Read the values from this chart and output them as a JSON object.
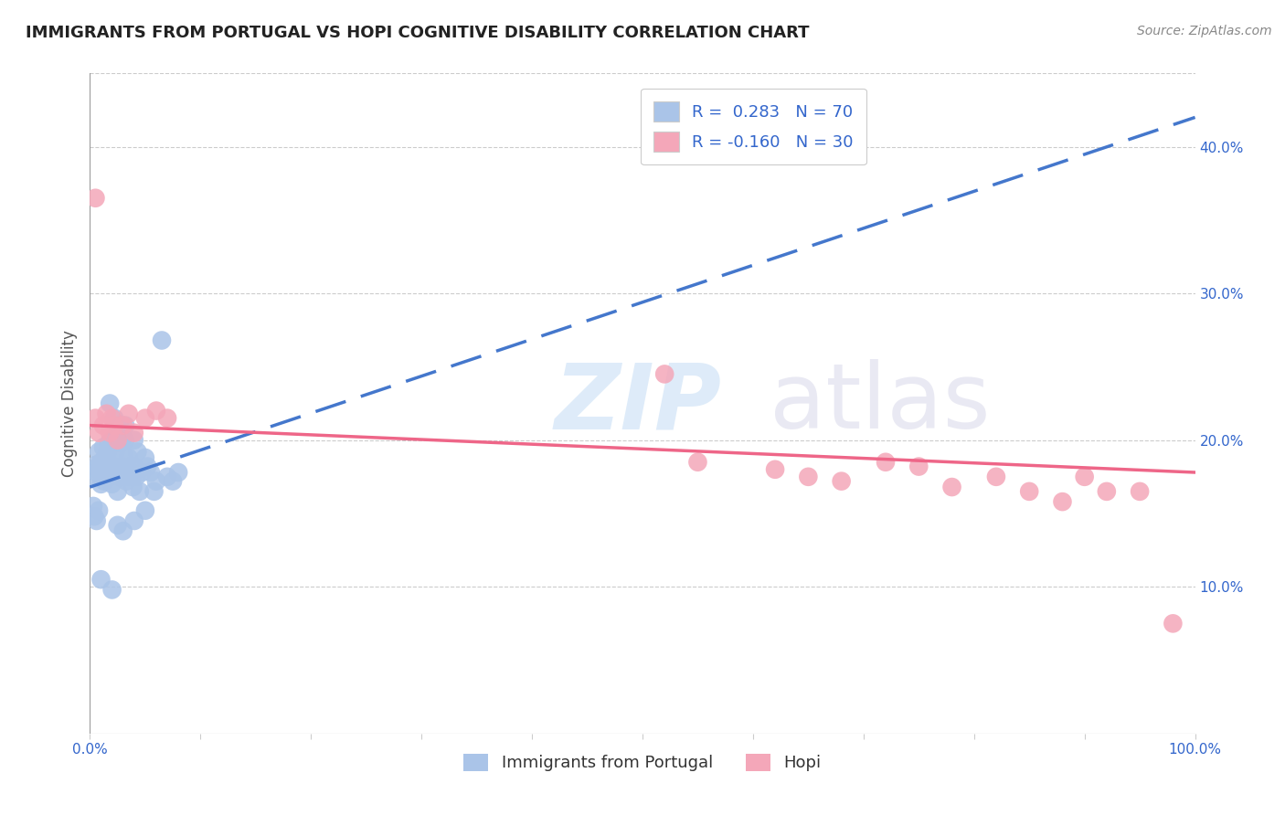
{
  "title": "IMMIGRANTS FROM PORTUGAL VS HOPI COGNITIVE DISABILITY CORRELATION CHART",
  "source": "Source: ZipAtlas.com",
  "ylabel": "Cognitive Disability",
  "x_min": 0.0,
  "x_max": 1.0,
  "y_min": 0.0,
  "y_max": 0.45,
  "x_ticks": [
    0.0,
    0.1,
    0.2,
    0.3,
    0.4,
    0.5,
    0.6,
    0.7,
    0.8,
    0.9,
    1.0
  ],
  "x_tick_labels": [
    "0.0%",
    "",
    "",
    "",
    "",
    "",
    "",
    "",
    "",
    "",
    "100.0%"
  ],
  "y_ticks": [
    0.1,
    0.2,
    0.3,
    0.4
  ],
  "y_tick_labels": [
    "10.0%",
    "20.0%",
    "30.0%",
    "40.0%"
  ],
  "color_blue": "#aac4e8",
  "color_pink": "#f4a7b9",
  "trendline_blue_color": "#4477cc",
  "trendline_pink_color": "#ee6688",
  "blue_scatter_x": [
    0.003,
    0.005,
    0.006,
    0.007,
    0.008,
    0.009,
    0.01,
    0.01,
    0.011,
    0.012,
    0.013,
    0.014,
    0.015,
    0.015,
    0.016,
    0.017,
    0.018,
    0.018,
    0.019,
    0.02,
    0.02,
    0.021,
    0.022,
    0.022,
    0.023,
    0.024,
    0.025,
    0.025,
    0.026,
    0.027,
    0.028,
    0.028,
    0.029,
    0.03,
    0.03,
    0.031,
    0.032,
    0.032,
    0.033,
    0.035,
    0.035,
    0.036,
    0.037,
    0.038,
    0.039,
    0.04,
    0.04,
    0.042,
    0.043,
    0.045,
    0.047,
    0.05,
    0.052,
    0.055,
    0.058,
    0.06,
    0.065,
    0.07,
    0.075,
    0.08,
    0.003,
    0.004,
    0.006,
    0.008,
    0.01,
    0.02,
    0.025,
    0.03,
    0.04,
    0.05
  ],
  "blue_scatter_y": [
    0.175,
    0.183,
    0.178,
    0.182,
    0.192,
    0.179,
    0.185,
    0.17,
    0.178,
    0.195,
    0.172,
    0.188,
    0.175,
    0.182,
    0.192,
    0.198,
    0.175,
    0.225,
    0.182,
    0.17,
    0.2,
    0.178,
    0.182,
    0.215,
    0.192,
    0.198,
    0.205,
    0.165,
    0.178,
    0.21,
    0.198,
    0.175,
    0.182,
    0.19,
    0.175,
    0.18,
    0.2,
    0.21,
    0.172,
    0.18,
    0.188,
    0.175,
    0.182,
    0.175,
    0.168,
    0.2,
    0.182,
    0.175,
    0.192,
    0.165,
    0.178,
    0.188,
    0.182,
    0.178,
    0.165,
    0.172,
    0.268,
    0.175,
    0.172,
    0.178,
    0.155,
    0.148,
    0.145,
    0.152,
    0.105,
    0.098,
    0.142,
    0.138,
    0.145,
    0.152
  ],
  "pink_scatter_x": [
    0.005,
    0.008,
    0.012,
    0.015,
    0.018,
    0.02,
    0.022,
    0.025,
    0.03,
    0.035,
    0.04,
    0.05,
    0.06,
    0.07,
    0.52,
    0.55,
    0.62,
    0.65,
    0.68,
    0.72,
    0.75,
    0.78,
    0.82,
    0.85,
    0.88,
    0.9,
    0.92,
    0.95,
    0.98,
    0.005
  ],
  "pink_scatter_y": [
    0.215,
    0.205,
    0.21,
    0.218,
    0.205,
    0.215,
    0.21,
    0.2,
    0.21,
    0.218,
    0.205,
    0.215,
    0.22,
    0.215,
    0.245,
    0.185,
    0.18,
    0.175,
    0.172,
    0.185,
    0.182,
    0.168,
    0.175,
    0.165,
    0.158,
    0.175,
    0.165,
    0.165,
    0.075,
    0.365
  ],
  "blue_trendline_x0": 0.0,
  "blue_trendline_x1": 1.0,
  "blue_trendline_y0": 0.168,
  "blue_trendline_y1": 0.42,
  "pink_trendline_x0": 0.0,
  "pink_trendline_x1": 1.0,
  "pink_trendline_y0": 0.21,
  "pink_trendline_y1": 0.178
}
